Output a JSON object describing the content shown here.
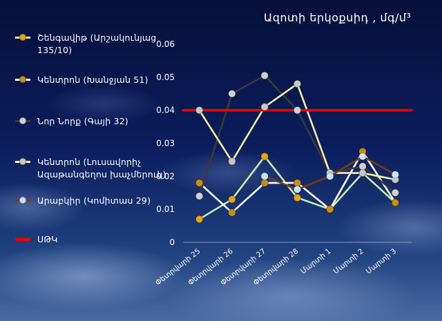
{
  "chart_data": {
    "type": "line",
    "title": "Ազոտի  երկօքսիդ , մգ/մ³",
    "categories": [
      "Փետրվարի 25",
      "Փետրվարի 26",
      "Փետրվարի 27",
      "Փետրվարի 28",
      "Մարտի 1",
      "Մարտի 2",
      "Մարտի 3"
    ],
    "ylim": [
      0,
      0.06
    ],
    "yticks": [
      "0",
      "0.01",
      "0.02",
      "0.03",
      "0.04",
      "0.05",
      "0.06"
    ],
    "grid": false,
    "legend_position": "left",
    "series": [
      {
        "name": "Շենգավիթ (Արշակունյաց 135/10)",
        "color": "#c8ebb0",
        "marker": "#e8a317",
        "values": [
          0.007,
          0.013,
          0.026,
          0.0135,
          0.01,
          0.021,
          0.012
        ]
      },
      {
        "name": "Կենտրոն (Խանջյան 51)",
        "color": "#ffffff",
        "marker": "#c8900f",
        "values": [
          0.018,
          0.009,
          0.018,
          0.018,
          0.01,
          0.0275,
          0.012
        ]
      },
      {
        "name": "Նոր Նորք (Գայի 32)",
        "color": "#3a3a3a",
        "marker": "#d0d0d0",
        "values": [
          0.014,
          0.045,
          0.0505,
          0.04,
          0.021,
          0.023,
          0.015
        ]
      },
      {
        "name": "Կենտրոն (Լուսավորիչ Ազաթանգեղոս խաչմերուկ)",
        "color": "#fff1a6",
        "marker": "#c8c8c8",
        "values": [
          0.04,
          0.0245,
          0.041,
          0.048,
          0.021,
          0.021,
          0.019
        ]
      },
      {
        "name": "Արաբկիր (Կոմիտաս 29)",
        "color": "#7a3a10",
        "marker": "#c8e4ff",
        "values": [
          null,
          null,
          0.02,
          0.016,
          0.02,
          0.026,
          0.0205
        ]
      },
      {
        "name": "ՍԹԿ",
        "color": "#ee0000",
        "marker": null,
        "values": [
          0.04,
          0.04,
          0.04,
          0.04,
          0.04,
          0.04,
          0.04
        ]
      }
    ]
  }
}
